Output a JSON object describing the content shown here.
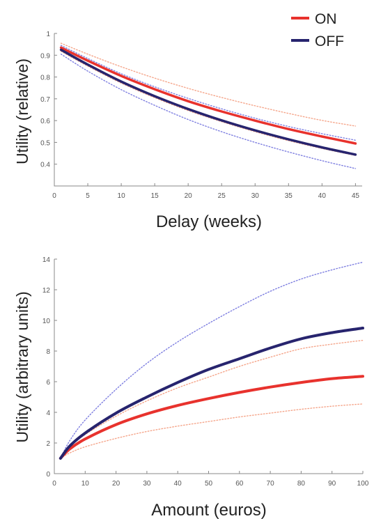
{
  "legend": [
    {
      "label": "ON",
      "color": "#e8322d"
    },
    {
      "label": "OFF",
      "color": "#27246e"
    }
  ],
  "chart_data": [
    {
      "type": "line",
      "xlabel": "Delay (weeks)",
      "ylabel": "Utility (relative)",
      "xlim": [
        0,
        46
      ],
      "ylim": [
        0.3,
        1.0
      ],
      "xticks": [
        0,
        5,
        10,
        15,
        20,
        25,
        30,
        35,
        40,
        45
      ],
      "yticks": [
        0.4,
        0.5,
        0.6,
        0.7,
        0.8,
        0.9,
        1.0
      ],
      "ytick_labels": [
        "0.4",
        "0.5",
        "0.6",
        "0.7",
        "0.8",
        "0.9",
        "1"
      ],
      "grid": false,
      "legend_position": "top-right",
      "x": [
        1,
        5,
        10,
        15,
        20,
        25,
        30,
        35,
        40,
        45
      ],
      "series": [
        {
          "name": "ON",
          "role": "fit",
          "color": "#e8322d",
          "values": [
            0.935,
            0.875,
            0.805,
            0.744,
            0.689,
            0.642,
            0.6,
            0.561,
            0.527,
            0.495
          ]
        },
        {
          "name": "OFF",
          "role": "fit",
          "color": "#27246e",
          "values": [
            0.925,
            0.857,
            0.779,
            0.712,
            0.653,
            0.601,
            0.555,
            0.514,
            0.477,
            0.444
          ]
        },
        {
          "role": "ci",
          "color": "#f5a58a",
          "values": [
            0.955,
            0.905,
            0.847,
            0.795,
            0.748,
            0.706,
            0.668,
            0.633,
            0.601,
            0.575
          ]
        },
        {
          "role": "ci",
          "color": "#f5a58a",
          "values": [
            0.918,
            0.85,
            0.772,
            0.705,
            0.646,
            0.595,
            0.549,
            0.508,
            0.472,
            0.44
          ]
        },
        {
          "role": "ci",
          "color": "#7d7ee0",
          "values": [
            0.945,
            0.885,
            0.815,
            0.755,
            0.702,
            0.654,
            0.611,
            0.573,
            0.54,
            0.51
          ]
        },
        {
          "role": "ci",
          "color": "#7d7ee0",
          "values": [
            0.905,
            0.827,
            0.742,
            0.67,
            0.605,
            0.549,
            0.5,
            0.456,
            0.416,
            0.38
          ]
        }
      ]
    },
    {
      "type": "line",
      "xlabel": "Amount (euros)",
      "ylabel": "Utility (arbitrary units)",
      "xlim": [
        0,
        100
      ],
      "ylim": [
        0,
        14
      ],
      "xticks": [
        0,
        10,
        20,
        30,
        40,
        50,
        60,
        70,
        80,
        90,
        100
      ],
      "yticks": [
        0,
        2,
        4,
        6,
        8,
        10,
        12,
        14
      ],
      "grid": false,
      "x": [
        2,
        5,
        10,
        20,
        30,
        40,
        50,
        60,
        70,
        80,
        90,
        100
      ],
      "series": [
        {
          "name": "ON",
          "role": "fit",
          "color": "#e8322d",
          "values": [
            1.0,
            1.61,
            2.26,
            3.2,
            3.9,
            4.45,
            4.9,
            5.3,
            5.65,
            5.95,
            6.2,
            6.35
          ]
        },
        {
          "name": "OFF",
          "role": "fit",
          "color": "#27246e",
          "values": [
            1.0,
            1.8,
            2.65,
            3.95,
            5.0,
            5.95,
            6.8,
            7.5,
            8.2,
            8.8,
            9.2,
            9.5
          ]
        },
        {
          "role": "ci",
          "color": "#f5a58a",
          "values": [
            1.0,
            1.35,
            1.75,
            2.3,
            2.75,
            3.1,
            3.4,
            3.7,
            3.95,
            4.2,
            4.4,
            4.55
          ]
        },
        {
          "role": "ci",
          "color": "#f5a58a",
          "values": [
            1.0,
            1.75,
            2.55,
            3.75,
            4.75,
            5.6,
            6.3,
            7.0,
            7.6,
            8.15,
            8.45,
            8.7
          ]
        },
        {
          "role": "ci",
          "color": "#7d7ee0",
          "values": [
            1.0,
            2.15,
            3.5,
            5.5,
            7.2,
            8.6,
            9.8,
            10.9,
            11.9,
            12.7,
            13.3,
            13.8
          ]
        }
      ]
    }
  ]
}
